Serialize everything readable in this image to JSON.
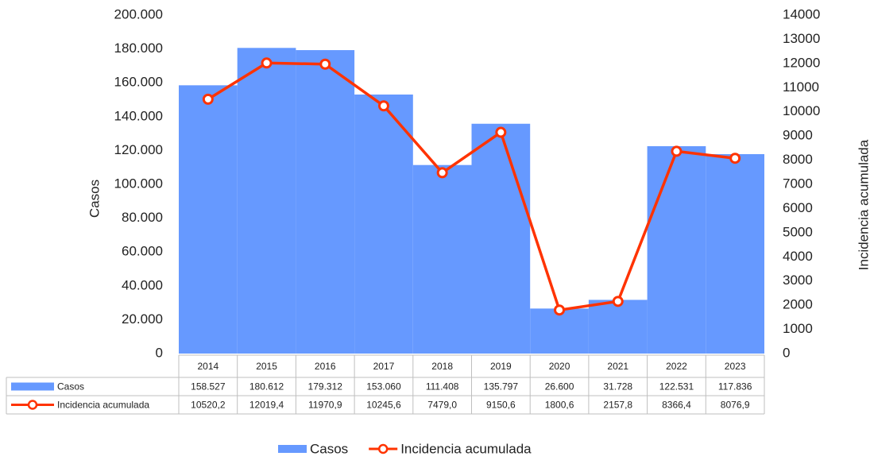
{
  "chart_data": {
    "type": "bar-line",
    "y_label": "Casos",
    "y2_label": "Incidencia acumulada",
    "categories": [
      "2014",
      "2015",
      "2016",
      "2017",
      "2018",
      "2019",
      "2020",
      "2021",
      "2022",
      "2023"
    ],
    "series": [
      {
        "name": "Casos",
        "type": "bar",
        "color": "#6699ff",
        "values": [
          158527,
          180612,
          179312,
          153060,
          111408,
          135797,
          26600,
          31728,
          122531,
          117836
        ],
        "value_labels": [
          "158.527",
          "180.612",
          "179.312",
          "153.060",
          "111.408",
          "135.797",
          "26.600",
          "31.728",
          "122.531",
          "117.836"
        ]
      },
      {
        "name": "Incidencia acumulada",
        "type": "line",
        "color": "#ff3300",
        "axis": "y2",
        "values": [
          10520.2,
          12019.4,
          11970.9,
          10245.6,
          7479.0,
          9150.6,
          1800.6,
          2157.8,
          8366.4,
          8076.9
        ],
        "value_labels": [
          "10520,2",
          "12019,4",
          "11970,9",
          "10245,6",
          "7479,0",
          "9150,6",
          "1800,6",
          "2157,8",
          "8366,4",
          "8076,9"
        ]
      }
    ],
    "ylim": [
      0,
      200000
    ],
    "yticks": [
      {
        "value": 0,
        "label": "0"
      },
      {
        "value": 20000,
        "label": "20.000"
      },
      {
        "value": 40000,
        "label": "40.000"
      },
      {
        "value": 60000,
        "label": "60.000"
      },
      {
        "value": 80000,
        "label": "80.000"
      },
      {
        "value": 100000,
        "label": "100.000"
      },
      {
        "value": 120000,
        "label": "120.000"
      },
      {
        "value": 140000,
        "label": "140.000"
      },
      {
        "value": 160000,
        "label": "160.000"
      },
      {
        "value": 180000,
        "label": "180.000"
      },
      {
        "value": 200000,
        "label": "200.000"
      }
    ],
    "y2lim": [
      0,
      14000
    ],
    "y2ticks": [
      0,
      1000,
      2000,
      3000,
      4000,
      5000,
      6000,
      7000,
      8000,
      9000,
      10000,
      11000,
      12000,
      13000,
      14000
    ],
    "grid": false,
    "legend": "bottom"
  }
}
